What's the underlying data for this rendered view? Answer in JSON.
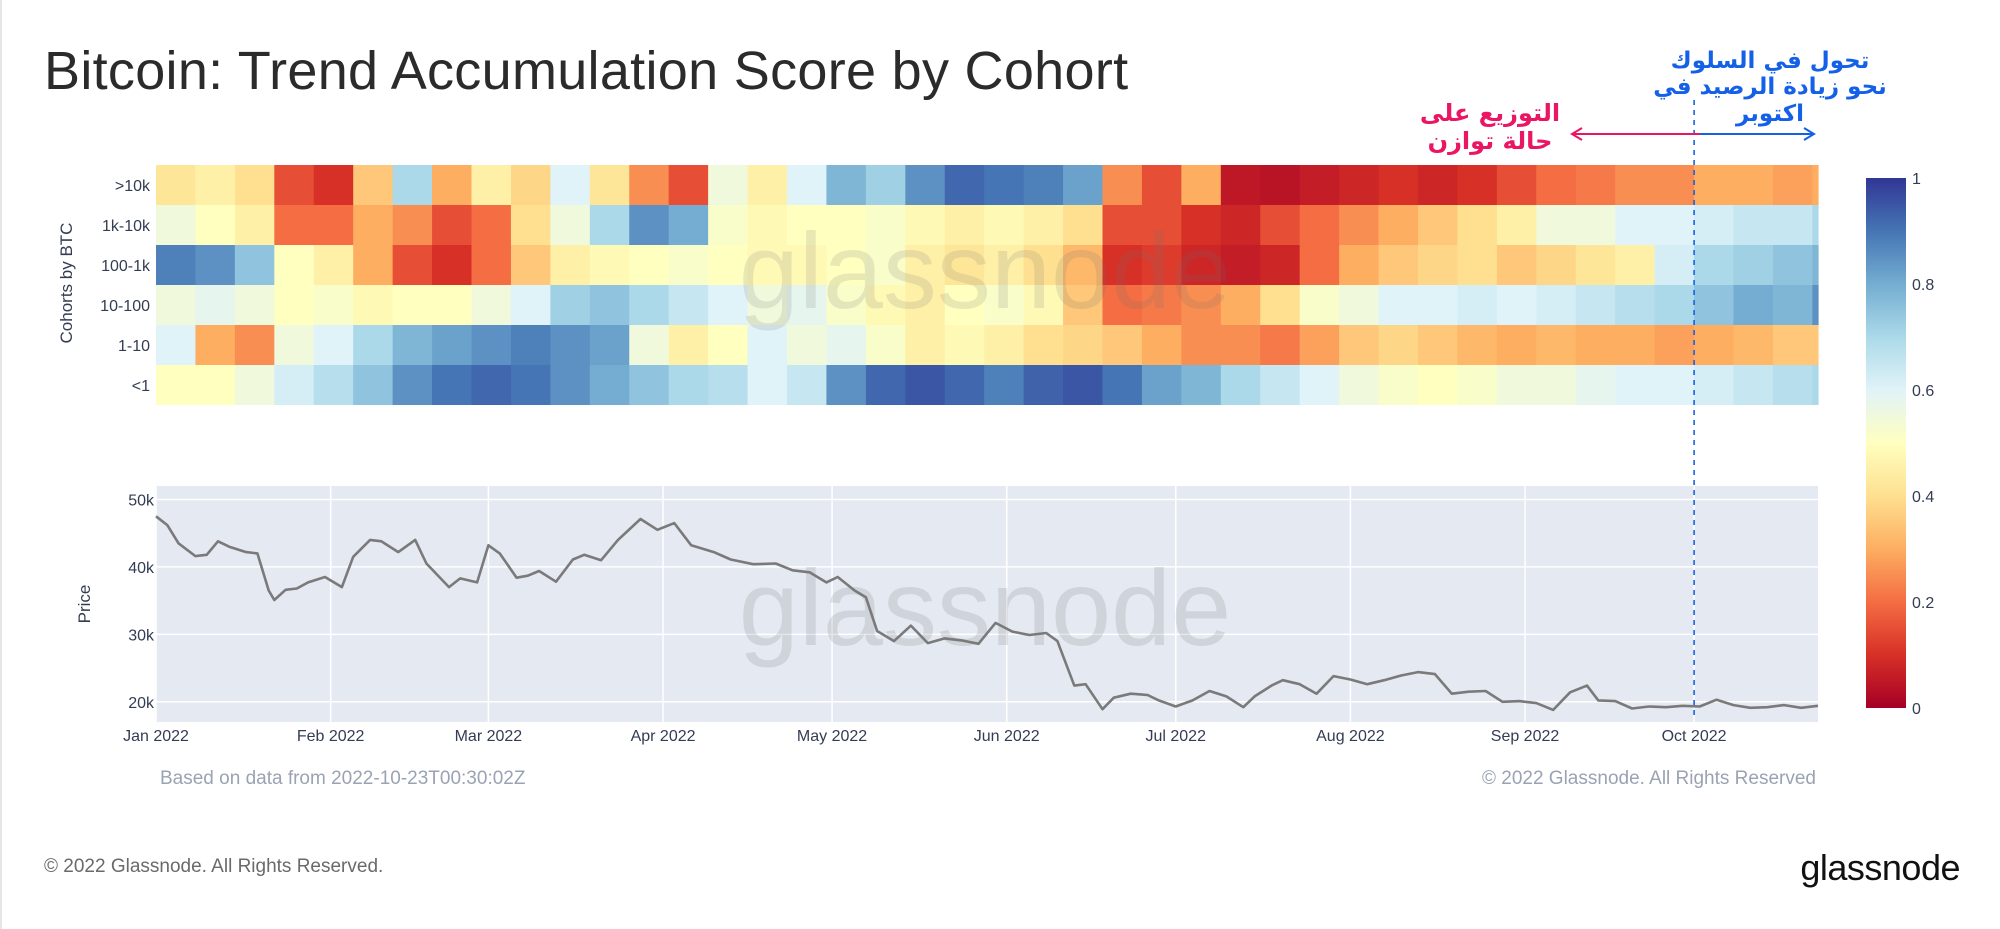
{
  "page": {
    "title": "Bitcoin: Trend Accumulation Score by Cohort",
    "footer_copyright": "© 2022 Glassnode. All Rights Reserved.",
    "brand": "glassnode",
    "watermark": "glassnode",
    "colors": {
      "brand_red": "#ea1563",
      "brand_blue": "#1461e8",
      "price_line": "#7a7a7a",
      "panel_bg": "#e5e9f2"
    }
  },
  "annotations": {
    "distribution": [
      "التوزيع على",
      "حالة توازن"
    ],
    "shift": [
      "تحول في السلوك",
      "نحو زيادة الرصيد في اكتوبر"
    ]
  },
  "chart_data": [
    {
      "type": "heatmap",
      "title": "Trend Accumulation Score by Cohort",
      "ylabel": "Cohorts by BTC",
      "rows": [
        ">10k",
        "1k-10k",
        "100-1k",
        "10-100",
        "1-10",
        "<1"
      ],
      "x_start": "2022-01-01",
      "x_end": "2022-10-23",
      "x_step_days": 7,
      "values": [
        [
          0.42,
          0.45,
          0.4,
          0.15,
          0.1,
          0.35,
          0.7,
          0.3,
          0.45,
          0.38,
          0.6,
          0.42,
          0.25,
          0.15,
          0.55,
          0.45,
          0.6,
          0.78,
          0.72,
          0.85,
          0.92,
          0.9,
          0.88,
          0.82,
          0.25,
          0.15,
          0.3,
          0.05,
          0.04,
          0.06,
          0.08,
          0.1,
          0.08,
          0.1,
          0.15,
          0.2,
          0.22,
          0.25,
          0.25,
          0.3,
          0.3,
          0.28,
          0.3
        ],
        [
          0.55,
          0.5,
          0.45,
          0.2,
          0.2,
          0.3,
          0.25,
          0.15,
          0.2,
          0.4,
          0.55,
          0.7,
          0.85,
          0.8,
          0.52,
          0.48,
          0.5,
          0.5,
          0.52,
          0.48,
          0.45,
          0.48,
          0.45,
          0.4,
          0.15,
          0.15,
          0.1,
          0.08,
          0.15,
          0.2,
          0.25,
          0.3,
          0.35,
          0.4,
          0.45,
          0.55,
          0.55,
          0.6,
          0.6,
          0.62,
          0.65,
          0.65,
          0.7
        ],
        [
          0.88,
          0.85,
          0.75,
          0.5,
          0.45,
          0.3,
          0.15,
          0.1,
          0.2,
          0.35,
          0.45,
          0.48,
          0.5,
          0.52,
          0.5,
          0.48,
          0.48,
          0.5,
          0.52,
          0.45,
          0.42,
          0.45,
          0.4,
          0.32,
          0.1,
          0.12,
          0.08,
          0.06,
          0.08,
          0.2,
          0.3,
          0.35,
          0.38,
          0.4,
          0.35,
          0.38,
          0.42,
          0.45,
          0.62,
          0.7,
          0.72,
          0.75,
          0.78
        ],
        [
          0.55,
          0.58,
          0.55,
          0.5,
          0.52,
          0.48,
          0.5,
          0.5,
          0.55,
          0.6,
          0.72,
          0.75,
          0.7,
          0.65,
          0.6,
          0.55,
          0.58,
          0.52,
          0.48,
          0.45,
          0.5,
          0.52,
          0.48,
          0.35,
          0.2,
          0.22,
          0.25,
          0.3,
          0.4,
          0.52,
          0.55,
          0.6,
          0.6,
          0.62,
          0.6,
          0.62,
          0.65,
          0.68,
          0.7,
          0.75,
          0.8,
          0.78,
          0.85
        ],
        [
          0.6,
          0.3,
          0.25,
          0.55,
          0.6,
          0.7,
          0.78,
          0.82,
          0.85,
          0.88,
          0.85,
          0.82,
          0.55,
          0.45,
          0.5,
          0.6,
          0.55,
          0.58,
          0.52,
          0.45,
          0.48,
          0.45,
          0.4,
          0.38,
          0.35,
          0.3,
          0.25,
          0.25,
          0.22,
          0.28,
          0.35,
          0.38,
          0.35,
          0.32,
          0.3,
          0.32,
          0.3,
          0.3,
          0.28,
          0.3,
          0.32,
          0.35,
          0.35
        ],
        [
          0.5,
          0.5,
          0.55,
          0.62,
          0.68,
          0.75,
          0.85,
          0.9,
          0.92,
          0.9,
          0.85,
          0.8,
          0.75,
          0.7,
          0.68,
          0.6,
          0.65,
          0.85,
          0.92,
          0.95,
          0.92,
          0.88,
          0.93,
          0.95,
          0.9,
          0.82,
          0.78,
          0.7,
          0.65,
          0.6,
          0.55,
          0.52,
          0.5,
          0.52,
          0.55,
          0.55,
          0.58,
          0.6,
          0.6,
          0.62,
          0.65,
          0.68,
          0.7
        ]
      ],
      "colorscale": "RdYlBu",
      "colorbar": {
        "range": [
          0,
          1
        ],
        "ticks": [
          "0",
          "0.2",
          "0.4",
          "0.6",
          "0.8",
          "1"
        ]
      }
    },
    {
      "type": "line",
      "ylabel": "Price",
      "x_ticks": [
        "Jan 2022",
        "Feb 2022",
        "Mar 2022",
        "Apr 2022",
        "May 2022",
        "Jun 2022",
        "Jul 2022",
        "Aug 2022",
        "Sep 2022",
        "Oct 2022"
      ],
      "y_ticks": [
        "20k",
        "30k",
        "40k",
        "50k"
      ],
      "ylim": [
        17000,
        52000
      ],
      "series": [
        {
          "name": "Price",
          "points": [
            [
              "2022-01-01",
              47.5
            ],
            [
              "2022-01-03",
              46.2
            ],
            [
              "2022-01-05",
              43.5
            ],
            [
              "2022-01-08",
              41.6
            ],
            [
              "2022-01-10",
              41.8
            ],
            [
              "2022-01-12",
              43.8
            ],
            [
              "2022-01-14",
              43.0
            ],
            [
              "2022-01-17",
              42.2
            ],
            [
              "2022-01-19",
              42.0
            ],
            [
              "2022-01-21",
              36.5
            ],
            [
              "2022-01-22",
              35.1
            ],
            [
              "2022-01-24",
              36.6
            ],
            [
              "2022-01-26",
              36.8
            ],
            [
              "2022-01-28",
              37.7
            ],
            [
              "2022-01-31",
              38.5
            ],
            [
              "2022-02-03",
              37.0
            ],
            [
              "2022-02-05",
              41.5
            ],
            [
              "2022-02-08",
              44.0
            ],
            [
              "2022-02-10",
              43.8
            ],
            [
              "2022-02-13",
              42.2
            ],
            [
              "2022-02-16",
              44.0
            ],
            [
              "2022-02-18",
              40.5
            ],
            [
              "2022-02-22",
              37.0
            ],
            [
              "2022-02-24",
              38.3
            ],
            [
              "2022-02-27",
              37.7
            ],
            [
              "2022-03-01",
              43.2
            ],
            [
              "2022-03-03",
              42.0
            ],
            [
              "2022-03-06",
              38.4
            ],
            [
              "2022-03-08",
              38.7
            ],
            [
              "2022-03-10",
              39.4
            ],
            [
              "2022-03-13",
              37.8
            ],
            [
              "2022-03-16",
              41.1
            ],
            [
              "2022-03-18",
              41.8
            ],
            [
              "2022-03-21",
              41.0
            ],
            [
              "2022-03-24",
              44.0
            ],
            [
              "2022-03-28",
              47.1
            ],
            [
              "2022-03-31",
              45.5
            ],
            [
              "2022-04-03",
              46.5
            ],
            [
              "2022-04-06",
              43.2
            ],
            [
              "2022-04-10",
              42.2
            ],
            [
              "2022-04-13",
              41.1
            ],
            [
              "2022-04-17",
              40.4
            ],
            [
              "2022-04-21",
              40.5
            ],
            [
              "2022-04-24",
              39.5
            ],
            [
              "2022-04-27",
              39.2
            ],
            [
              "2022-04-30",
              37.7
            ],
            [
              "2022-05-02",
              38.5
            ],
            [
              "2022-05-05",
              36.5
            ],
            [
              "2022-05-07",
              35.5
            ],
            [
              "2022-05-09",
              30.5
            ],
            [
              "2022-05-12",
              29.0
            ],
            [
              "2022-05-15",
              31.3
            ],
            [
              "2022-05-18",
              28.7
            ],
            [
              "2022-05-21",
              29.4
            ],
            [
              "2022-05-24",
              29.1
            ],
            [
              "2022-05-27",
              28.6
            ],
            [
              "2022-05-30",
              31.7
            ],
            [
              "2022-06-02",
              30.4
            ],
            [
              "2022-06-05",
              29.9
            ],
            [
              "2022-06-08",
              30.2
            ],
            [
              "2022-06-10",
              29.0
            ],
            [
              "2022-06-13",
              22.4
            ],
            [
              "2022-06-15",
              22.6
            ],
            [
              "2022-06-18",
              18.9
            ],
            [
              "2022-06-20",
              20.6
            ],
            [
              "2022-06-23",
              21.2
            ],
            [
              "2022-06-26",
              21.0
            ],
            [
              "2022-06-28",
              20.2
            ],
            [
              "2022-07-01",
              19.3
            ],
            [
              "2022-07-04",
              20.2
            ],
            [
              "2022-07-07",
              21.6
            ],
            [
              "2022-07-10",
              20.8
            ],
            [
              "2022-07-13",
              19.2
            ],
            [
              "2022-07-15",
              20.8
            ],
            [
              "2022-07-18",
              22.4
            ],
            [
              "2022-07-20",
              23.2
            ],
            [
              "2022-07-23",
              22.6
            ],
            [
              "2022-07-26",
              21.2
            ],
            [
              "2022-07-29",
              23.8
            ],
            [
              "2022-08-01",
              23.3
            ],
            [
              "2022-08-04",
              22.6
            ],
            [
              "2022-08-07",
              23.2
            ],
            [
              "2022-08-10",
              23.9
            ],
            [
              "2022-08-13",
              24.4
            ],
            [
              "2022-08-16",
              24.1
            ],
            [
              "2022-08-19",
              21.2
            ],
            [
              "2022-08-22",
              21.5
            ],
            [
              "2022-08-25",
              21.6
            ],
            [
              "2022-08-28",
              20.0
            ],
            [
              "2022-08-31",
              20.1
            ],
            [
              "2022-09-03",
              19.8
            ],
            [
              "2022-09-06",
              18.8
            ],
            [
              "2022-09-09",
              21.4
            ],
            [
              "2022-09-12",
              22.4
            ],
            [
              "2022-09-14",
              20.2
            ],
            [
              "2022-09-17",
              20.1
            ],
            [
              "2022-09-20",
              19.0
            ],
            [
              "2022-09-23",
              19.3
            ],
            [
              "2022-09-26",
              19.2
            ],
            [
              "2022-09-29",
              19.4
            ],
            [
              "2022-10-02",
              19.3
            ],
            [
              "2022-10-05",
              20.3
            ],
            [
              "2022-10-08",
              19.5
            ],
            [
              "2022-10-11",
              19.1
            ],
            [
              "2022-10-14",
              19.2
            ],
            [
              "2022-10-17",
              19.5
            ],
            [
              "2022-10-20",
              19.1
            ],
            [
              "2022-10-23",
              19.4
            ]
          ]
        }
      ],
      "annotation_line_date": "2022-10-01",
      "source_note": "Based on data from 2022-10-23T00:30:02Z",
      "copyright_note": "© 2022 Glassnode. All Rights Reserved"
    }
  ]
}
